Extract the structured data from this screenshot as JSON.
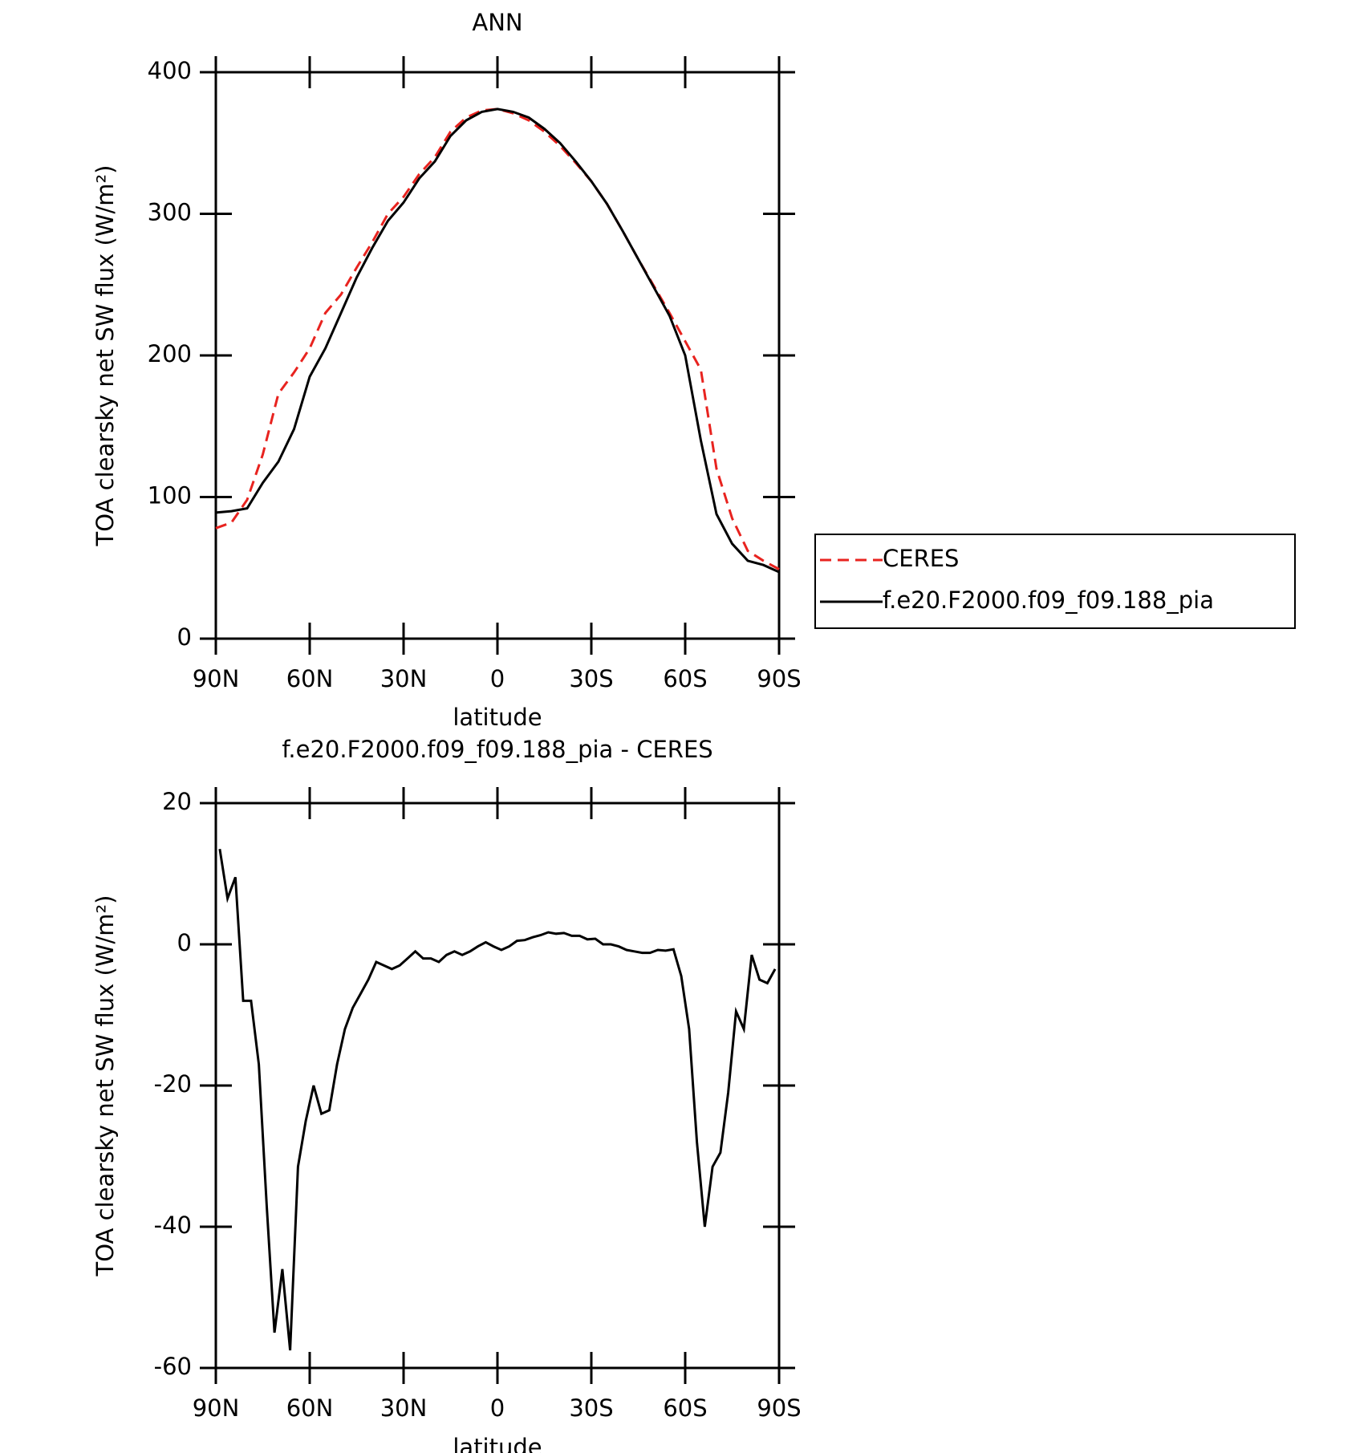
{
  "chart_data": [
    {
      "type": "line",
      "title": "ANN",
      "xlabel": "latitude",
      "ylabel": "TOA clearsky net SW flux (W/m²)",
      "xlim": [
        90,
        -90
      ],
      "ylim": [
        0,
        400
      ],
      "xticks": [
        {
          "value": 90,
          "label": "90N"
        },
        {
          "value": 60,
          "label": "60N"
        },
        {
          "value": 30,
          "label": "30N"
        },
        0,
        {
          "value": -30,
          "label": "30S"
        },
        {
          "value": -60,
          "label": "60S"
        },
        {
          "value": -90,
          "label": "90S"
        }
      ],
      "yticks": [
        0,
        100,
        200,
        300,
        400
      ],
      "legend": "right",
      "x": [
        90,
        85,
        80,
        75,
        70,
        65,
        60,
        55,
        50,
        45,
        40,
        35,
        30,
        25,
        20,
        15,
        10,
        5,
        0,
        -5,
        -10,
        -15,
        -20,
        -25,
        -30,
        -35,
        -40,
        -45,
        -50,
        -55,
        -60,
        -65,
        -70,
        -75,
        -80,
        -85,
        -90
      ],
      "series": [
        {
          "name": "CERES",
          "color": "#e8231f",
          "linestyle": "dashed",
          "values": [
            78,
            82,
            98,
            130,
            173,
            188,
            205,
            230,
            243,
            262,
            280,
            300,
            312,
            328,
            340,
            358,
            368,
            373,
            374,
            371,
            366,
            358,
            348,
            336,
            323,
            307,
            288,
            268,
            249,
            230,
            210,
            190,
            120,
            85,
            62,
            55,
            49
          ]
        },
        {
          "name": "f.e20.F2000.f09_f09.188_pia",
          "color": "#000000",
          "linestyle": "solid",
          "values": [
            89,
            90,
            92,
            110,
            125,
            148,
            185,
            205,
            230,
            255,
            276,
            295,
            308,
            325,
            337,
            355,
            366,
            372,
            374,
            372,
            368,
            360,
            350,
            337,
            323,
            307,
            288,
            268,
            248,
            228,
            200,
            140,
            88,
            67,
            55,
            52,
            47
          ]
        }
      ]
    },
    {
      "type": "line",
      "title": "f.e20.F2000.f09_f09.188_pia - CERES",
      "xlabel": "latitude",
      "ylabel": "TOA clearsky net SW flux (W/m²)",
      "xlim": [
        90,
        -90
      ],
      "ylim": [
        -60,
        20
      ],
      "xticks": [
        {
          "value": 90,
          "label": "90N"
        },
        {
          "value": 60,
          "label": "60N"
        },
        {
          "value": 30,
          "label": "30N"
        },
        0,
        {
          "value": -30,
          "label": "30S"
        },
        {
          "value": -60,
          "label": "60S"
        },
        {
          "value": -90,
          "label": "90S"
        }
      ],
      "yticks": [
        -60,
        -40,
        -20,
        0,
        20
      ],
      "x": [
        88.75,
        86.25,
        83.75,
        81.25,
        78.75,
        76.25,
        73.75,
        71.25,
        68.75,
        66.25,
        63.75,
        61.25,
        58.75,
        56.25,
        53.75,
        51.25,
        48.75,
        46.25,
        43.75,
        41.25,
        38.75,
        36.25,
        33.75,
        31.25,
        28.75,
        26.25,
        23.75,
        21.25,
        18.75,
        16.25,
        13.75,
        11.25,
        8.75,
        6.25,
        3.75,
        1.25,
        -1.25,
        -3.75,
        -6.25,
        -8.75,
        -11.25,
        -13.75,
        -16.25,
        -18.75,
        -21.25,
        -23.75,
        -26.25,
        -28.75,
        -31.25,
        -33.75,
        -36.25,
        -38.75,
        -41.25,
        -43.75,
        -46.25,
        -48.75,
        -51.25,
        -53.75,
        -56.25,
        -58.75,
        -61.25,
        -63.75,
        -66.25,
        -68.75,
        -71.25,
        -73.75,
        -76.25,
        -78.75,
        -81.25,
        -83.75,
        -86.25,
        -88.75
      ],
      "series": [
        {
          "color": "#000000",
          "linestyle": "solid",
          "values": [
            13.5,
            6.5,
            9.5,
            -8,
            -8,
            -17,
            -37,
            -55,
            -46,
            -57.5,
            -31.5,
            -25,
            -20,
            -24,
            -23.5,
            -17,
            -12,
            -9,
            -7,
            -5,
            -2.5,
            -3,
            -3.5,
            -3,
            -2,
            -1,
            -2,
            -2,
            -2.5,
            -1.5,
            -1,
            -1.5,
            -1,
            -0.3,
            0.3,
            -0.3,
            -0.8,
            -0.3,
            0.5,
            0.6,
            1,
            1.3,
            1.7,
            1.5,
            1.6,
            1.2,
            1.2,
            0.7,
            0.8,
            0,
            0,
            -0.3,
            -0.8,
            -1,
            -1.2,
            -1.2,
            -0.8,
            -0.9,
            -0.7,
            -4.5,
            -12,
            -28,
            -40,
            -31.5,
            -29.5,
            -21,
            -9.5,
            -12,
            -1.5,
            -5,
            -5.5,
            -3.5
          ]
        }
      ]
    }
  ]
}
